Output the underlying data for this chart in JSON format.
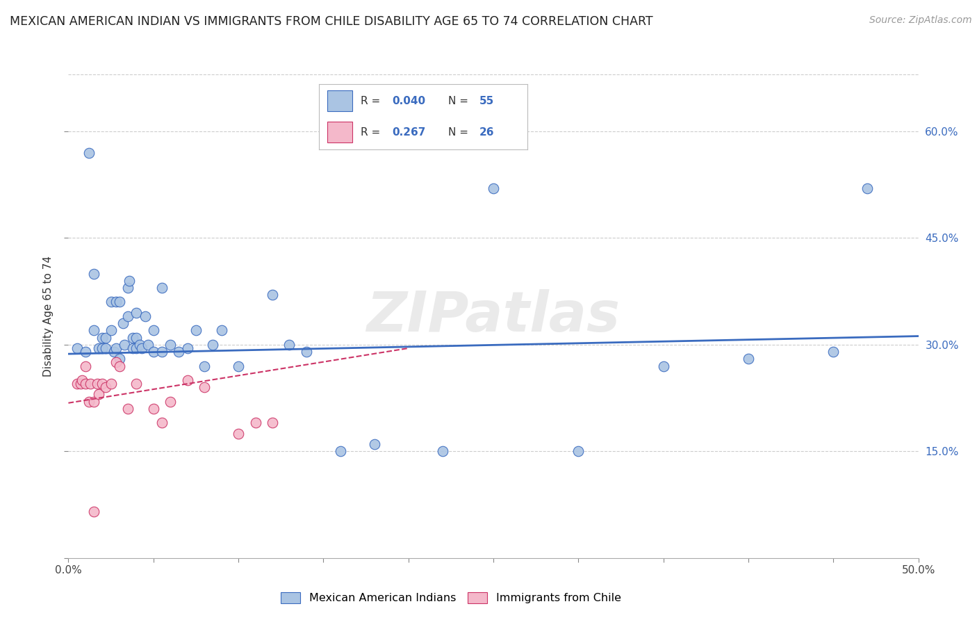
{
  "title": "MEXICAN AMERICAN INDIAN VS IMMIGRANTS FROM CHILE DISABILITY AGE 65 TO 74 CORRELATION CHART",
  "source": "Source: ZipAtlas.com",
  "ylabel": "Disability Age 65 to 74",
  "xlim": [
    0.0,
    0.5
  ],
  "ylim": [
    0.0,
    0.68
  ],
  "xticks": [
    0.0,
    0.05,
    0.1,
    0.15,
    0.2,
    0.25,
    0.3,
    0.35,
    0.4,
    0.45,
    0.5
  ],
  "xticklabels_major": [
    "0.0%",
    "",
    "",
    "",
    "",
    "",
    "",
    "",
    "",
    "",
    "50.0%"
  ],
  "yticks": [
    0.0,
    0.15,
    0.3,
    0.45,
    0.6
  ],
  "yticklabels_right": [
    "",
    "15.0%",
    "30.0%",
    "45.0%",
    "60.0%"
  ],
  "watermark": "ZIPatlas",
  "legend_R1": "0.040",
  "legend_N1": "55",
  "legend_R2": "0.267",
  "legend_N2": "26",
  "series1_color": "#aac4e3",
  "series2_color": "#f4b8ca",
  "trendline1_color": "#3a6bbf",
  "trendline2_color": "#cc3366",
  "blue_scatter_x": [
    0.005,
    0.01,
    0.012,
    0.015,
    0.015,
    0.018,
    0.02,
    0.02,
    0.022,
    0.022,
    0.025,
    0.025,
    0.027,
    0.028,
    0.028,
    0.03,
    0.03,
    0.032,
    0.033,
    0.035,
    0.035,
    0.036,
    0.038,
    0.038,
    0.04,
    0.04,
    0.04,
    0.042,
    0.043,
    0.045,
    0.047,
    0.05,
    0.05,
    0.055,
    0.055,
    0.06,
    0.065,
    0.07,
    0.075,
    0.08,
    0.085,
    0.09,
    0.1,
    0.12,
    0.13,
    0.14,
    0.16,
    0.18,
    0.22,
    0.25,
    0.3,
    0.35,
    0.4,
    0.45,
    0.47
  ],
  "blue_scatter_y": [
    0.295,
    0.29,
    0.57,
    0.4,
    0.32,
    0.295,
    0.295,
    0.31,
    0.295,
    0.31,
    0.32,
    0.36,
    0.29,
    0.295,
    0.36,
    0.28,
    0.36,
    0.33,
    0.3,
    0.38,
    0.34,
    0.39,
    0.295,
    0.31,
    0.295,
    0.31,
    0.345,
    0.3,
    0.295,
    0.34,
    0.3,
    0.29,
    0.32,
    0.29,
    0.38,
    0.3,
    0.29,
    0.295,
    0.32,
    0.27,
    0.3,
    0.32,
    0.27,
    0.37,
    0.3,
    0.29,
    0.15,
    0.16,
    0.15,
    0.52,
    0.15,
    0.27,
    0.28,
    0.29,
    0.52
  ],
  "pink_scatter_x": [
    0.005,
    0.007,
    0.008,
    0.01,
    0.01,
    0.012,
    0.013,
    0.015,
    0.015,
    0.017,
    0.018,
    0.02,
    0.022,
    0.025,
    0.028,
    0.03,
    0.035,
    0.04,
    0.05,
    0.055,
    0.06,
    0.07,
    0.08,
    0.1,
    0.11,
    0.12
  ],
  "pink_scatter_y": [
    0.245,
    0.245,
    0.25,
    0.245,
    0.27,
    0.22,
    0.245,
    0.065,
    0.22,
    0.245,
    0.23,
    0.245,
    0.24,
    0.245,
    0.275,
    0.27,
    0.21,
    0.245,
    0.21,
    0.19,
    0.22,
    0.25,
    0.24,
    0.175,
    0.19,
    0.19
  ],
  "trendline1_x": [
    0.0,
    0.5
  ],
  "trendline1_y": [
    0.287,
    0.312
  ],
  "trendline2_x": [
    0.0,
    0.2
  ],
  "trendline2_y": [
    0.218,
    0.295
  ],
  "background_color": "#ffffff",
  "grid_color": "#cccccc"
}
